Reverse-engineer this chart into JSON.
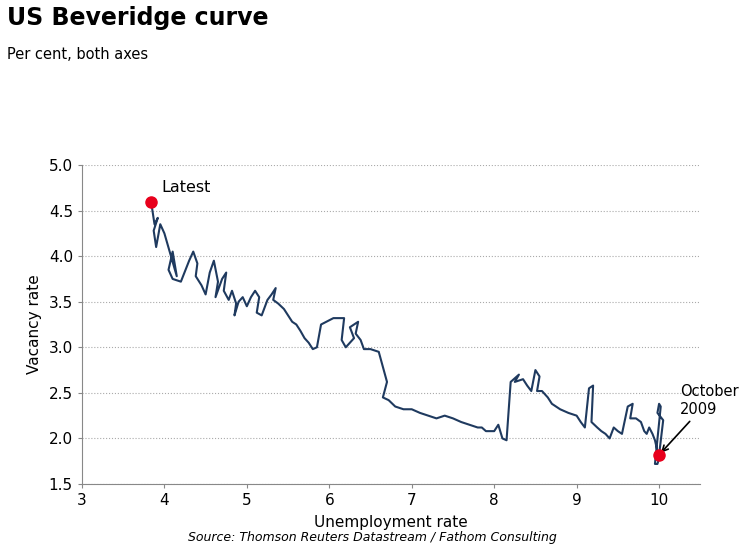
{
  "title": "US Beveridge curve",
  "subtitle": "Per cent, both axes",
  "xlabel": "Unemployment rate",
  "ylabel": "Vacancy rate",
  "source": "Source: Thomson Reuters Datastream / Fathom Consulting",
  "xlim": [
    3,
    10.5
  ],
  "ylim": [
    1.5,
    5.0
  ],
  "xticks": [
    3,
    4,
    5,
    6,
    7,
    8,
    9,
    10
  ],
  "yticks": [
    1.5,
    2.0,
    2.5,
    3.0,
    3.5,
    4.0,
    4.5,
    5.0
  ],
  "line_color": "#1f3a5f",
  "dot_color": "#e8001c",
  "curve_data": [
    [
      3.84,
      4.59
    ],
    [
      3.88,
      4.35
    ],
    [
      3.92,
      4.42
    ],
    [
      3.87,
      4.28
    ],
    [
      3.9,
      4.1
    ],
    [
      3.95,
      4.35
    ],
    [
      4.0,
      4.25
    ],
    [
      4.15,
      3.78
    ],
    [
      4.1,
      4.05
    ],
    [
      4.05,
      3.85
    ],
    [
      4.1,
      3.75
    ],
    [
      4.2,
      3.72
    ],
    [
      4.3,
      3.95
    ],
    [
      4.35,
      4.05
    ],
    [
      4.4,
      3.92
    ],
    [
      4.38,
      3.78
    ],
    [
      4.45,
      3.68
    ],
    [
      4.5,
      3.58
    ],
    [
      4.55,
      3.82
    ],
    [
      4.6,
      3.95
    ],
    [
      4.65,
      3.72
    ],
    [
      4.62,
      3.55
    ],
    [
      4.7,
      3.75
    ],
    [
      4.75,
      3.82
    ],
    [
      4.72,
      3.62
    ],
    [
      4.78,
      3.52
    ],
    [
      4.82,
      3.62
    ],
    [
      4.87,
      3.48
    ],
    [
      4.85,
      3.35
    ],
    [
      4.9,
      3.5
    ],
    [
      4.95,
      3.55
    ],
    [
      5.0,
      3.45
    ],
    [
      5.05,
      3.55
    ],
    [
      5.1,
      3.62
    ],
    [
      5.15,
      3.55
    ],
    [
      5.12,
      3.38
    ],
    [
      5.18,
      3.35
    ],
    [
      5.25,
      3.52
    ],
    [
      5.3,
      3.58
    ],
    [
      5.35,
      3.65
    ],
    [
      5.32,
      3.52
    ],
    [
      5.38,
      3.48
    ],
    [
      5.45,
      3.42
    ],
    [
      5.5,
      3.35
    ],
    [
      5.55,
      3.28
    ],
    [
      5.6,
      3.25
    ],
    [
      5.65,
      3.18
    ],
    [
      5.7,
      3.1
    ],
    [
      5.75,
      3.05
    ],
    [
      5.8,
      2.98
    ],
    [
      5.85,
      3.0
    ],
    [
      5.9,
      3.25
    ],
    [
      6.05,
      3.32
    ],
    [
      6.18,
      3.32
    ],
    [
      6.15,
      3.08
    ],
    [
      6.2,
      3.0
    ],
    [
      6.3,
      3.1
    ],
    [
      6.25,
      3.22
    ],
    [
      6.35,
      3.28
    ],
    [
      6.32,
      3.15
    ],
    [
      6.38,
      3.08
    ],
    [
      6.42,
      2.98
    ],
    [
      6.5,
      2.98
    ],
    [
      6.6,
      2.95
    ],
    [
      6.7,
      2.62
    ],
    [
      6.65,
      2.45
    ],
    [
      6.72,
      2.42
    ],
    [
      6.8,
      2.35
    ],
    [
      6.9,
      2.32
    ],
    [
      7.0,
      2.32
    ],
    [
      7.1,
      2.28
    ],
    [
      7.2,
      2.25
    ],
    [
      7.3,
      2.22
    ],
    [
      7.4,
      2.25
    ],
    [
      7.5,
      2.22
    ],
    [
      7.6,
      2.18
    ],
    [
      7.7,
      2.15
    ],
    [
      7.8,
      2.12
    ],
    [
      7.85,
      2.12
    ],
    [
      7.9,
      2.08
    ],
    [
      8.0,
      2.08
    ],
    [
      8.05,
      2.15
    ],
    [
      8.1,
      2.0
    ],
    [
      8.15,
      1.98
    ],
    [
      8.2,
      2.62
    ],
    [
      8.3,
      2.7
    ],
    [
      8.25,
      2.62
    ],
    [
      8.35,
      2.65
    ],
    [
      8.4,
      2.58
    ],
    [
      8.45,
      2.52
    ],
    [
      8.5,
      2.75
    ],
    [
      8.55,
      2.68
    ],
    [
      8.52,
      2.52
    ],
    [
      8.58,
      2.52
    ],
    [
      8.65,
      2.45
    ],
    [
      8.7,
      2.38
    ],
    [
      8.8,
      2.32
    ],
    [
      8.9,
      2.28
    ],
    [
      9.0,
      2.25
    ],
    [
      9.05,
      2.18
    ],
    [
      9.1,
      2.12
    ],
    [
      9.15,
      2.55
    ],
    [
      9.2,
      2.58
    ],
    [
      9.18,
      2.18
    ],
    [
      9.25,
      2.12
    ],
    [
      9.3,
      2.08
    ],
    [
      9.35,
      2.05
    ],
    [
      9.4,
      2.0
    ],
    [
      9.45,
      2.12
    ],
    [
      9.5,
      2.08
    ],
    [
      9.55,
      2.05
    ],
    [
      9.62,
      2.35
    ],
    [
      9.68,
      2.38
    ],
    [
      9.65,
      2.22
    ],
    [
      9.72,
      2.22
    ],
    [
      9.78,
      2.18
    ],
    [
      9.82,
      2.08
    ],
    [
      9.85,
      2.05
    ],
    [
      9.88,
      2.12
    ],
    [
      9.92,
      2.05
    ],
    [
      9.95,
      1.98
    ],
    [
      10.0,
      1.78
    ],
    [
      9.98,
      1.72
    ],
    [
      9.95,
      1.72
    ],
    [
      10.02,
      2.35
    ],
    [
      10.0,
      2.38
    ],
    [
      9.98,
      2.28
    ],
    [
      10.05,
      2.2
    ],
    [
      10.0,
      1.82
    ]
  ],
  "latest_point": [
    3.84,
    4.59
  ],
  "october2009_point": [
    10.0,
    1.82
  ],
  "latest_label": "Latest",
  "october2009_label": "October\n2009"
}
